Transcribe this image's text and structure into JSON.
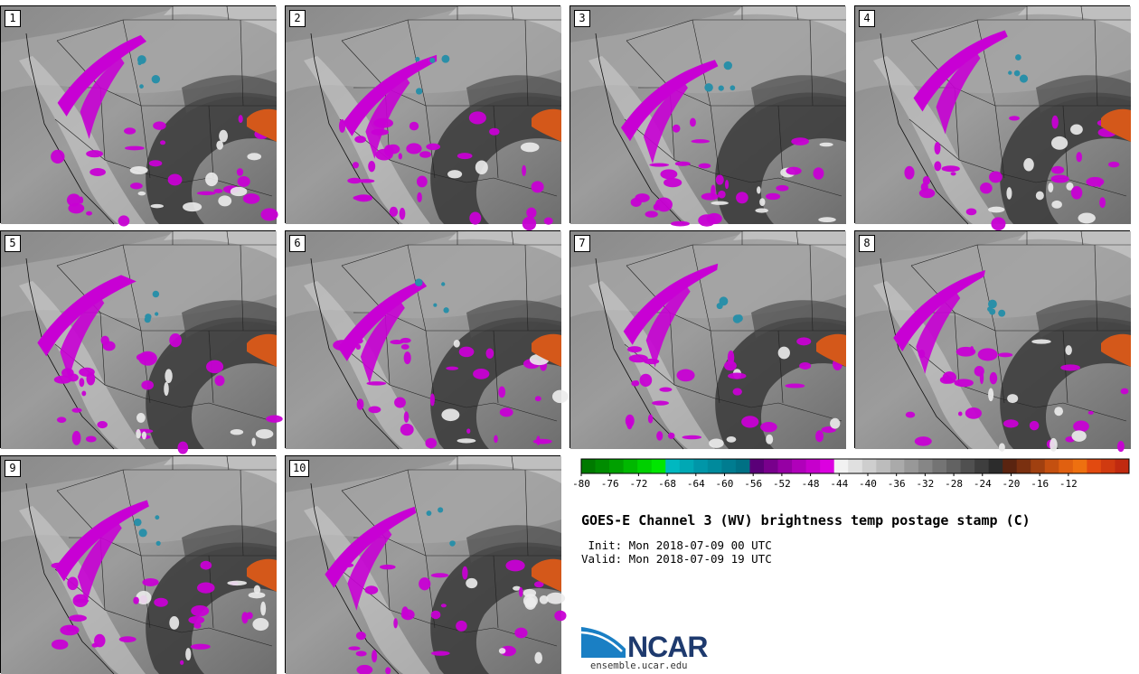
{
  "panels": [
    {
      "label": "1",
      "seed": 11
    },
    {
      "label": "2",
      "seed": 23
    },
    {
      "label": "3",
      "seed": 37
    },
    {
      "label": "4",
      "seed": 41
    },
    {
      "label": "5",
      "seed": 53
    },
    {
      "label": "6",
      "seed": 67
    },
    {
      "label": "7",
      "seed": 79
    },
    {
      "label": "8",
      "seed": 83
    },
    {
      "label": "9",
      "seed": 97
    },
    {
      "label": "10",
      "seed": 101
    }
  ],
  "colorbar": {
    "ticks": [
      "-80",
      "-76",
      "-72",
      "-68",
      "-64",
      "-60",
      "-56",
      "-52",
      "-48",
      "-44",
      "-40",
      "-36",
      "-32",
      "-28",
      "-24",
      "-20",
      "-16",
      "-12"
    ],
    "colors": [
      "#007a00",
      "#008c00",
      "#00a000",
      "#00b800",
      "#00d000",
      "#00e600",
      "#00b8c0",
      "#00a8b4",
      "#0096a8",
      "#008a9c",
      "#007c90",
      "#007084",
      "#5a0078",
      "#78008c",
      "#9600a4",
      "#b000ba",
      "#c600cc",
      "#dc00e0",
      "#f2f2f2",
      "#e0e0e0",
      "#cecece",
      "#bcbcbc",
      "#aaaaaa",
      "#989898",
      "#868686",
      "#747474",
      "#626262",
      "#505050",
      "#3e3e3e",
      "#2c2c2c",
      "#5a2410",
      "#7a3010",
      "#a04010",
      "#c45010",
      "#e06010",
      "#ee7010",
      "#e24a10",
      "#d03a10",
      "#c02a10"
    ]
  },
  "title": "GOES-E Channel 3 (WV) brightness temp postage stamp (C)",
  "init_line": " Init: Mon 2018-07-09 00 UTC",
  "valid_line": "Valid: Mon 2018-07-09 19 UTC",
  "logo": {
    "text": "NCAR",
    "url": "ensemble.ucar.edu"
  },
  "colors": {
    "magenta": "#c800d4",
    "teal": "#2a8fa8",
    "orange": "#d4581a",
    "dark_gray": "#3a3a3a",
    "light_gray": "#c8c8c8"
  }
}
